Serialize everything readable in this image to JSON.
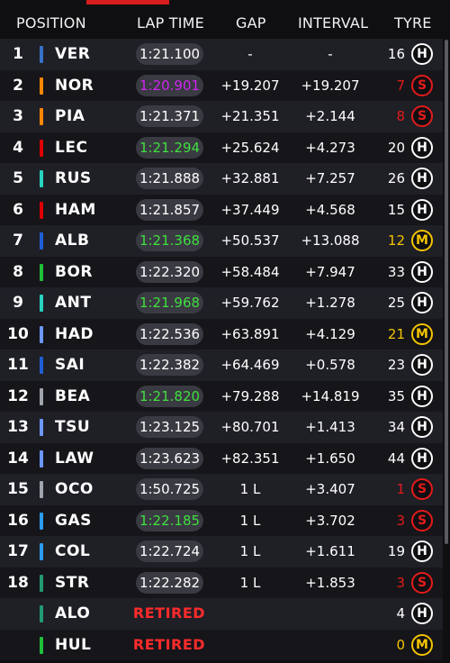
{
  "header": {
    "position": "POSITION",
    "lap_time": "LAP TIME",
    "gap": "GAP",
    "interval": "INTERVAL",
    "tyre": "TYRE"
  },
  "colors": {
    "purple": "#d026f0",
    "green": "#3fe03f",
    "retired": "#ff2b2b",
    "orange": "#f2aa00",
    "soft": "#e41b1b",
    "medium": "#f3c400",
    "hard": "#ffffff"
  },
  "rows": [
    {
      "pos": "1",
      "team": "#3671c6",
      "driver": "VER",
      "lap": "1:21.100",
      "lap_color": "#ffffff",
      "gap": "-",
      "interval": "-",
      "laps": "16",
      "laps_color": "#ffffff",
      "tyre": "H",
      "tyre_color": "#ffffff"
    },
    {
      "pos": "2",
      "team": "#ff8700",
      "driver": "NOR",
      "lap": "1:20.901",
      "lap_color": "#d026f0",
      "gap": "+19.207",
      "interval": "+19.207",
      "laps": "7",
      "laps_color": "#e41b1b",
      "tyre": "S",
      "tyre_color": "#e41b1b"
    },
    {
      "pos": "3",
      "team": "#ff8700",
      "driver": "PIA",
      "lap": "1:21.371",
      "lap_color": "#ffffff",
      "gap": "+21.351",
      "interval": "+2.144",
      "laps": "8",
      "laps_color": "#e41b1b",
      "tyre": "S",
      "tyre_color": "#e41b1b"
    },
    {
      "pos": "4",
      "team": "#dc0000",
      "driver": "LEC",
      "lap": "1:21.294",
      "lap_color": "#3fe03f",
      "gap": "+25.624",
      "interval": "+4.273",
      "laps": "20",
      "laps_color": "#ffffff",
      "tyre": "H",
      "tyre_color": "#ffffff"
    },
    {
      "pos": "5",
      "team": "#27d2be",
      "driver": "RUS",
      "lap": "1:21.888",
      "lap_color": "#ffffff",
      "gap": "+32.881",
      "interval": "+7.257",
      "laps": "26",
      "laps_color": "#ffffff",
      "tyre": "H",
      "tyre_color": "#ffffff"
    },
    {
      "pos": "6",
      "team": "#dc0000",
      "driver": "HAM",
      "lap": "1:21.857",
      "lap_color": "#ffffff",
      "gap": "+37.449",
      "interval": "+4.568",
      "laps": "15",
      "laps_color": "#ffffff",
      "tyre": "H",
      "tyre_color": "#ffffff"
    },
    {
      "pos": "7",
      "team": "#1f5fd6",
      "driver": "ALB",
      "lap": "1:21.368",
      "lap_color": "#3fe03f",
      "gap": "+50.537",
      "interval": "+13.088",
      "laps": "12",
      "laps_color": "#f3c400",
      "tyre": "M",
      "tyre_color": "#f3c400"
    },
    {
      "pos": "8",
      "team": "#1fbf3a",
      "driver": "BOR",
      "lap": "1:22.320",
      "lap_color": "#ffffff",
      "gap": "+58.484",
      "interval": "+7.947",
      "laps": "33",
      "laps_color": "#ffffff",
      "tyre": "H",
      "tyre_color": "#ffffff"
    },
    {
      "pos": "9",
      "team": "#27d2be",
      "driver": "ANT",
      "lap": "1:21.968",
      "lap_color": "#3fe03f",
      "gap": "+59.762",
      "interval": "+1.278",
      "laps": "25",
      "laps_color": "#ffffff",
      "tyre": "H",
      "tyre_color": "#ffffff"
    },
    {
      "pos": "10",
      "team": "#6c98ff",
      "driver": "HAD",
      "lap": "1:22.536",
      "lap_color": "#ffffff",
      "gap": "+63.891",
      "interval": "+4.129",
      "laps": "21",
      "laps_color": "#f3c400",
      "tyre": "M",
      "tyre_color": "#f3c400"
    },
    {
      "pos": "11",
      "team": "#1f5fd6",
      "driver": "SAI",
      "lap": "1:22.382",
      "lap_color": "#ffffff",
      "gap": "+64.469",
      "interval": "+0.578",
      "laps": "23",
      "laps_color": "#ffffff",
      "tyre": "H",
      "tyre_color": "#ffffff"
    },
    {
      "pos": "12",
      "team": "#a0a4ad",
      "driver": "BEA",
      "lap": "1:21.820",
      "lap_color": "#3fe03f",
      "gap": "+79.288",
      "interval": "+14.819",
      "laps": "35",
      "laps_color": "#ffffff",
      "tyre": "H",
      "tyre_color": "#ffffff"
    },
    {
      "pos": "13",
      "team": "#6c98ff",
      "driver": "TSU",
      "lap": "1:23.125",
      "lap_color": "#ffffff",
      "gap": "+80.701",
      "interval": "+1.413",
      "laps": "34",
      "laps_color": "#ffffff",
      "tyre": "H",
      "tyre_color": "#ffffff"
    },
    {
      "pos": "14",
      "team": "#6c98ff",
      "driver": "LAW",
      "lap": "1:23.623",
      "lap_color": "#ffffff",
      "gap": "+82.351",
      "interval": "+1.650",
      "laps": "44",
      "laps_color": "#ffffff",
      "tyre": "H",
      "tyre_color": "#ffffff"
    },
    {
      "pos": "15",
      "team": "#a0a4ad",
      "driver": "OCO",
      "lap": "1:50.725",
      "lap_color": "#ffffff",
      "gap": "1 L",
      "interval": "+3.407",
      "laps": "1",
      "laps_color": "#e41b1b",
      "tyre": "S",
      "tyre_color": "#e41b1b"
    },
    {
      "pos": "16",
      "team": "#2b9cf0",
      "driver": "GAS",
      "lap": "1:22.185",
      "lap_color": "#3fe03f",
      "gap": "1 L",
      "interval": "+3.702",
      "laps": "3",
      "laps_color": "#e41b1b",
      "tyre": "S",
      "tyre_color": "#e41b1b"
    },
    {
      "pos": "17",
      "team": "#2b9cf0",
      "driver": "COL",
      "lap": "1:22.724",
      "lap_color": "#ffffff",
      "gap": "1 L",
      "interval": "+1.611",
      "laps": "19",
      "laps_color": "#ffffff",
      "tyre": "H",
      "tyre_color": "#ffffff"
    },
    {
      "pos": "18",
      "team": "#229971",
      "driver": "STR",
      "lap": "1:22.282",
      "lap_color": "#ffffff",
      "gap": "1 L",
      "interval": "+1.853",
      "laps": "3",
      "laps_color": "#e41b1b",
      "tyre": "S",
      "tyre_color": "#e41b1b"
    },
    {
      "pos": "",
      "team": "#229971",
      "driver": "ALO",
      "lap": "",
      "lap_color": "#ffffff",
      "status": "RETIRED",
      "gap": "",
      "interval": "",
      "laps": "4",
      "laps_color": "#ffffff",
      "tyre": "H",
      "tyre_color": "#ffffff"
    },
    {
      "pos": "",
      "team": "#1fbf3a",
      "driver": "HUL",
      "lap": "",
      "lap_color": "#ffffff",
      "status": "RETIRED",
      "gap": "",
      "interval": "",
      "laps": "0",
      "laps_color": "#f3c400",
      "tyre": "M",
      "tyre_color": "#f3c400"
    }
  ]
}
